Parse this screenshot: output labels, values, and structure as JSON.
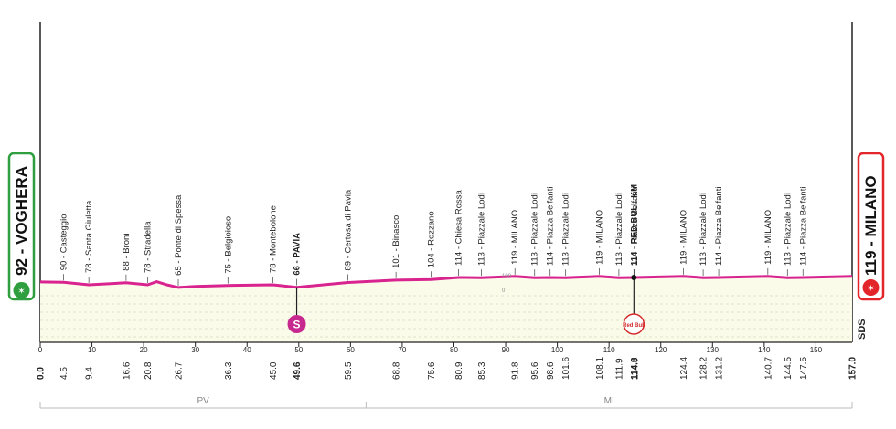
{
  "chart_data": {
    "type": "area",
    "stage": {
      "start": {
        "label": "92 - VOGHERA",
        "color": "#2e9e3e"
      },
      "finish": {
        "label": "119 - MILANO",
        "color": "#e3262a"
      }
    },
    "route_color": "#d9238f",
    "fill_color": "#fbfbea",
    "xlim": [
      0,
      157
    ],
    "ylim": [
      0,
      150
    ],
    "x_ticks": [
      "0",
      "10",
      "20",
      "30",
      "40",
      "50",
      "60",
      "70",
      "80",
      "90",
      "100",
      "110",
      "120",
      "130",
      "140",
      "150"
    ],
    "altitude_marks": [
      "100",
      "0"
    ],
    "profile": [
      [
        0,
        92
      ],
      [
        4.5,
        90
      ],
      [
        9.4,
        78
      ],
      [
        16.6,
        88
      ],
      [
        20.8,
        78
      ],
      [
        22.5,
        93
      ],
      [
        24.5,
        78
      ],
      [
        26.7,
        65
      ],
      [
        30,
        70
      ],
      [
        36.3,
        75
      ],
      [
        45,
        78
      ],
      [
        49.6,
        66
      ],
      [
        59.5,
        89
      ],
      [
        68.8,
        101
      ],
      [
        75.6,
        104
      ],
      [
        80.9,
        114
      ],
      [
        85.3,
        113
      ],
      [
        91.8,
        119
      ],
      [
        95.6,
        113
      ],
      [
        98.6,
        114
      ],
      [
        101.6,
        113
      ],
      [
        108.1,
        119
      ],
      [
        111.9,
        113
      ],
      [
        114.8,
        114
      ],
      [
        114.9,
        114
      ],
      [
        124.4,
        119
      ],
      [
        128.2,
        113
      ],
      [
        131.2,
        114
      ],
      [
        140.7,
        119
      ],
      [
        144.5,
        113
      ],
      [
        147.5,
        114
      ],
      [
        157,
        119
      ]
    ],
    "points": [
      {
        "km": "0.0",
        "label": ""
      },
      {
        "km": "4.5",
        "label": "90 - Casteggio"
      },
      {
        "km": "9.4",
        "label": "78 - Santa Giuletta"
      },
      {
        "km": "16.6",
        "label": "88 - Broni"
      },
      {
        "km": "20.8",
        "label": "78 - Stradella"
      },
      {
        "km": "26.7",
        "label": "65 - Ponte di Spessa"
      },
      {
        "km": "36.3",
        "label": "75 - Belgioioso"
      },
      {
        "km": "45.0",
        "label": "78 - Montebolone"
      },
      {
        "km": "49.6",
        "label": "66 - PAVIA",
        "bold": true
      },
      {
        "km": "59.5",
        "label": "89 - Certosa di Pavia"
      },
      {
        "km": "68.8",
        "label": "101 - Binasco"
      },
      {
        "km": "75.6",
        "label": "104 - Rozzano"
      },
      {
        "km": "80.9",
        "label": "114 - Chiesa Rossa"
      },
      {
        "km": "85.3",
        "label": "113 - Piazzale Lodi"
      },
      {
        "km": "91.8",
        "label": "119 - MILANO"
      },
      {
        "km": "95.6",
        "label": "113 - Piazzale Lodi"
      },
      {
        "km": "98.6",
        "label": "114 - Piazza Belfanti"
      },
      {
        "km": "101.6",
        "label": "113 - Piazzale Lodi"
      },
      {
        "km": "108.1",
        "label": "119 - MILANO"
      },
      {
        "km": "111.9",
        "label": "113 - Piazzale Lodi"
      },
      {
        "km": "114.8",
        "label": "114 - RED BULL KM",
        "bold": true
      },
      {
        "km": "114.9",
        "label": "114 - Piazza Belfanti"
      },
      {
        "km": "124.4",
        "label": "119 - MILANO"
      },
      {
        "km": "128.2",
        "label": "113 - Piazzale Lodi"
      },
      {
        "km": "131.2",
        "label": "114 - Piazza Belfanti"
      },
      {
        "km": "140.7",
        "label": "119 - MILANO"
      },
      {
        "km": "144.5",
        "label": "113 - Piazzale Lodi"
      },
      {
        "km": "147.5",
        "label": "114 - Piazza Belfanti"
      },
      {
        "km": "157.0",
        "label": ""
      }
    ],
    "special_marks": [
      {
        "km": 49.6,
        "label": "S",
        "kind": "sprint",
        "color": "#c8298f"
      },
      {
        "km": 114.8,
        "label": "Red Bull",
        "kind": "red-bull-km",
        "color": "#d42a2a"
      }
    ],
    "provinces": [
      {
        "label": "PV",
        "from": 0,
        "to": 63
      },
      {
        "label": "MI",
        "from": 63,
        "to": 157
      }
    ],
    "brand": "SDS"
  }
}
